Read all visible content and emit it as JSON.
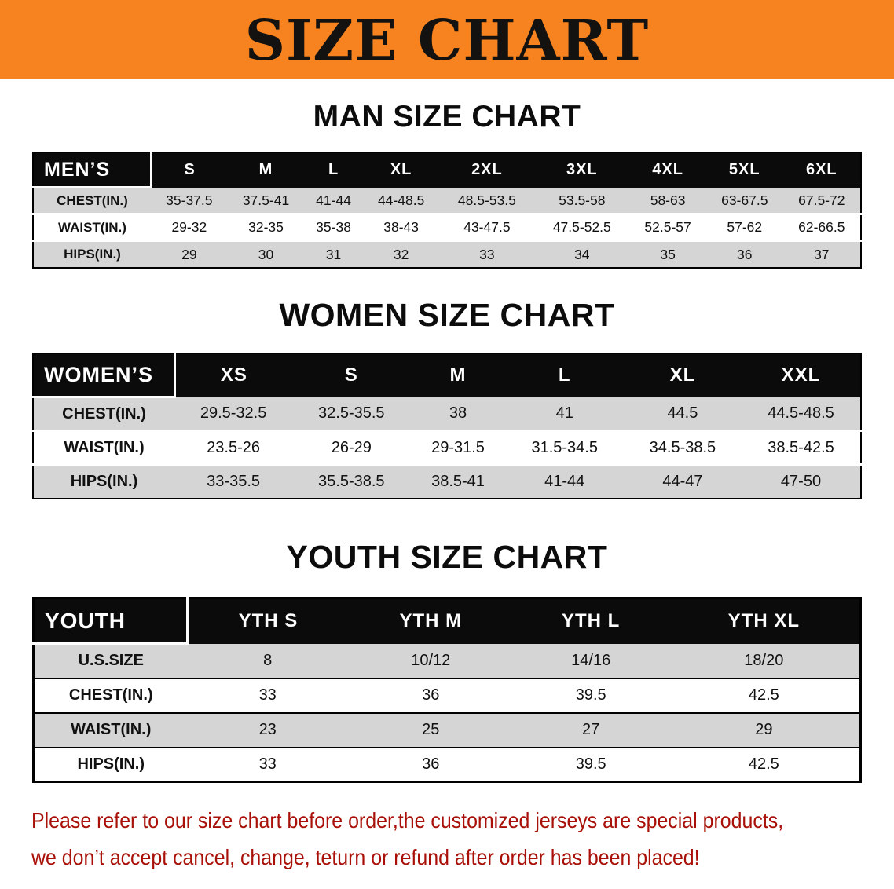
{
  "banner": {
    "title": "SIZE CHART"
  },
  "colors": {
    "banner_orange": "#F6831F",
    "header_black": "#0B0B0B",
    "stripe_gray": "#D5D5D5",
    "disclaimer_red": "#A81008"
  },
  "sections": {
    "men": {
      "heading": "MAN SIZE CHART",
      "table": {
        "corner": "MEN’S",
        "columns": [
          "S",
          "M",
          "L",
          "XL",
          "2XL",
          "3XL",
          "4XL",
          "5XL",
          "6XL"
        ],
        "rows": [
          {
            "label": "CHEST(IN.)",
            "values": [
              "35-37.5",
              "37.5-41",
              "41-44",
              "44-48.5",
              "48.5-53.5",
              "53.5-58",
              "58-63",
              "63-67.5",
              "67.5-72"
            ]
          },
          {
            "label": "WAIST(IN.)",
            "values": [
              "29-32",
              "32-35",
              "35-38",
              "38-43",
              "43-47.5",
              "47.5-52.5",
              "52.5-57",
              "57-62",
              "62-66.5"
            ]
          },
          {
            "label": "HIPS(IN.)",
            "values": [
              "29",
              "30",
              "31",
              "32",
              "33",
              "34",
              "35",
              "36",
              "37"
            ]
          }
        ]
      }
    },
    "women": {
      "heading": "WOMEN SIZE CHART",
      "table": {
        "corner": "WOMEN’S",
        "columns": [
          "XS",
          "S",
          "M",
          "L",
          "XL",
          "XXL"
        ],
        "rows": [
          {
            "label": "CHEST(IN.)",
            "values": [
              "29.5-32.5",
              "32.5-35.5",
              "38",
              "41",
              "44.5",
              "44.5-48.5"
            ]
          },
          {
            "label": "WAIST(IN.)",
            "values": [
              "23.5-26",
              "26-29",
              "29-31.5",
              "31.5-34.5",
              "34.5-38.5",
              "38.5-42.5"
            ]
          },
          {
            "label": "HIPS(IN.)",
            "values": [
              "33-35.5",
              "35.5-38.5",
              "38.5-41",
              "41-44",
              "44-47",
              "47-50"
            ]
          }
        ]
      }
    },
    "youth": {
      "heading": "YOUTH SIZE CHART",
      "table": {
        "corner": "YOUTH",
        "columns": [
          "YTH S",
          "YTH M",
          "YTH L",
          "YTH XL"
        ],
        "rows": [
          {
            "label": "U.S.SIZE",
            "values": [
              "8",
              "10/12",
              "14/16",
              "18/20"
            ]
          },
          {
            "label": "CHEST(IN.)",
            "values": [
              "33",
              "36",
              "39.5",
              "42.5"
            ]
          },
          {
            "label": "WAIST(IN.)",
            "values": [
              "23",
              "25",
              "27",
              "29"
            ]
          },
          {
            "label": "HIPS(IN.)",
            "values": [
              "33",
              "36",
              "39.5",
              "42.5"
            ]
          }
        ]
      }
    }
  },
  "footer": {
    "line1": "Please refer to our size chart before order,the customized jerseys are special products,",
    "line2": "we don’t accept cancel, change, teturn or refund after order has been placed!"
  }
}
